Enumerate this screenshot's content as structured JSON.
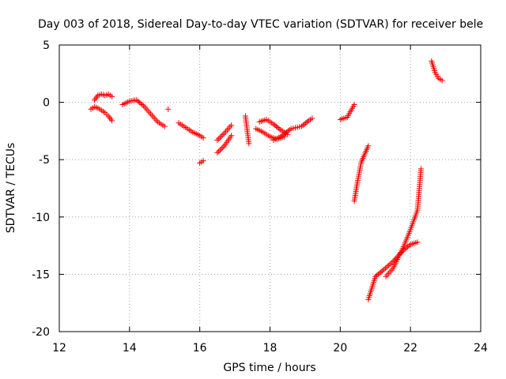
{
  "chart_data": {
    "type": "scatter",
    "title": "Day 003 of 2018, Sidereal Day-to-day VTEC variation (SDTVAR) for receiver bele",
    "xlabel": "GPS time / hours",
    "ylabel": "SDTVAR / TECUs",
    "xlim": [
      12,
      24
    ],
    "ylim": [
      -20,
      5
    ],
    "xticks": [
      12,
      14,
      16,
      18,
      20,
      22,
      24
    ],
    "yticks": [
      5,
      0,
      -5,
      -10,
      -15,
      -20
    ],
    "grid": true,
    "marker": "+",
    "color": "#ff0000",
    "series": [
      {
        "x": [
          12.9,
          13.0,
          13.1,
          13.2,
          13.3,
          13.4,
          13.5
        ],
        "y": [
          -0.6,
          -0.4,
          -0.5,
          -0.7,
          -0.9,
          -1.2,
          -1.6
        ]
      },
      {
        "x": [
          13.0,
          13.1,
          13.2,
          13.3,
          13.4,
          13.5
        ],
        "y": [
          0.2,
          0.6,
          0.7,
          0.6,
          0.7,
          0.5
        ]
      },
      {
        "x": [
          13.8,
          14.0,
          14.2,
          14.4,
          14.6,
          14.8,
          15.0
        ],
        "y": [
          -0.2,
          0.1,
          0.2,
          -0.3,
          -1.0,
          -1.7,
          -2.1
        ]
      },
      {
        "x": [
          15.1
        ],
        "y": [
          -0.6
        ]
      },
      {
        "x": [
          15.4,
          15.6,
          15.8,
          16.0,
          16.1
        ],
        "y": [
          -1.8,
          -2.2,
          -2.6,
          -2.9,
          -3.1
        ]
      },
      {
        "x": [
          16.0,
          16.1
        ],
        "y": [
          -5.3,
          -5.1
        ]
      },
      {
        "x": [
          16.5,
          16.7,
          16.9
        ],
        "y": [
          -3.3,
          -2.7,
          -2.0
        ]
      },
      {
        "x": [
          16.5,
          16.7,
          16.9
        ],
        "y": [
          -4.4,
          -3.8,
          -2.9
        ]
      },
      {
        "x": [
          17.3,
          17.4
        ],
        "y": [
          -1.2,
          -3.6
        ]
      },
      {
        "x": [
          17.6,
          17.8,
          18.0,
          18.2,
          18.4
        ],
        "y": [
          -2.3,
          -2.6,
          -3.0,
          -3.2,
          -3.0
        ]
      },
      {
        "x": [
          17.7,
          17.9,
          18.1,
          18.3,
          18.5
        ],
        "y": [
          -1.7,
          -1.5,
          -1.9,
          -2.4,
          -2.8
        ]
      },
      {
        "x": [
          18.1,
          18.3,
          18.6,
          18.9,
          19.1,
          19.2
        ],
        "y": [
          -3.3,
          -3.0,
          -2.3,
          -2.1,
          -1.6,
          -1.4
        ]
      },
      {
        "x": [
          20.0,
          20.2,
          20.4
        ],
        "y": [
          -1.5,
          -1.3,
          -0.2
        ]
      },
      {
        "x": [
          20.4,
          20.5,
          20.6,
          20.8
        ],
        "y": [
          -8.6,
          -6.8,
          -5.2,
          -3.8
        ]
      },
      {
        "x": [
          20.8,
          21.0,
          21.2,
          21.5,
          21.8,
          22.0,
          22.2
        ],
        "y": [
          -17.2,
          -15.2,
          -14.7,
          -13.9,
          -12.9,
          -12.4,
          -12.2
        ]
      },
      {
        "x": [
          21.3,
          21.5,
          21.8,
          22.0,
          22.2,
          22.3
        ],
        "y": [
          -15.2,
          -14.5,
          -12.6,
          -11.1,
          -9.4,
          -5.8
        ]
      },
      {
        "x": [
          22.6,
          22.7,
          22.8,
          22.9
        ],
        "y": [
          3.6,
          2.6,
          2.1,
          1.9
        ]
      }
    ]
  }
}
